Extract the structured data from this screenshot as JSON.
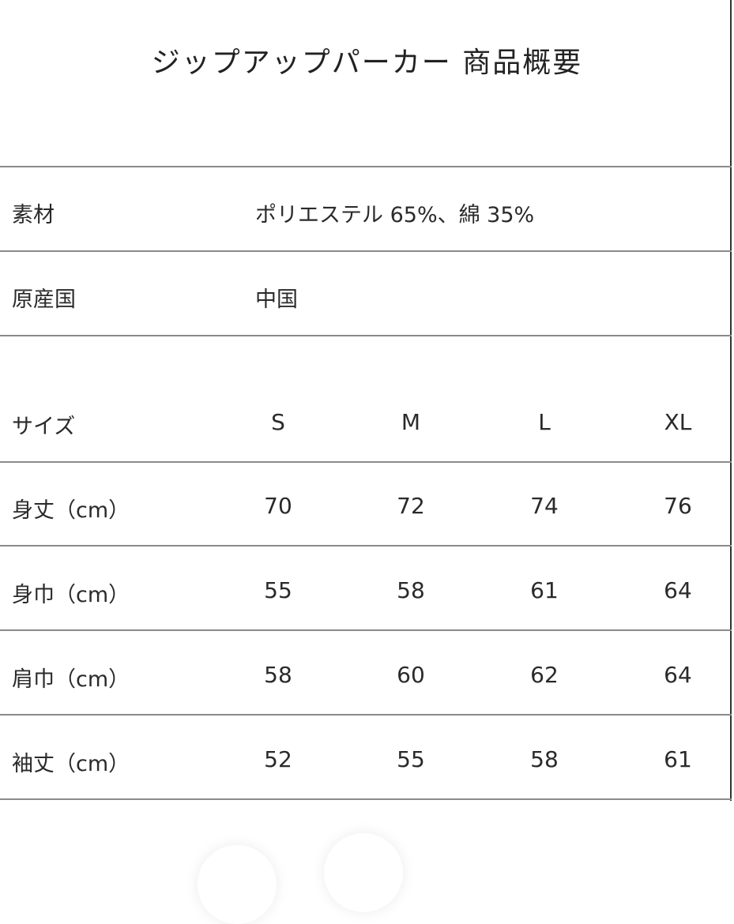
{
  "title": "ジップアップパーカー 商品概要",
  "info": [
    {
      "label": "素材",
      "value": "ポリエステル 65%、綿 35%"
    },
    {
      "label": "原産国",
      "value": "中国"
    }
  ],
  "size_table": {
    "header_label": "サイズ",
    "sizes": [
      "S",
      "M",
      "L",
      "XL"
    ],
    "rows": [
      {
        "label": "身丈（cm）",
        "values": [
          "70",
          "72",
          "74",
          "76"
        ]
      },
      {
        "label": "身巾（cm）",
        "values": [
          "55",
          "58",
          "61",
          "64"
        ]
      },
      {
        "label": "肩巾（cm）",
        "values": [
          "58",
          "60",
          "62",
          "64"
        ]
      },
      {
        "label": "袖丈（cm）",
        "values": [
          "52",
          "55",
          "58",
          "61"
        ]
      }
    ]
  }
}
